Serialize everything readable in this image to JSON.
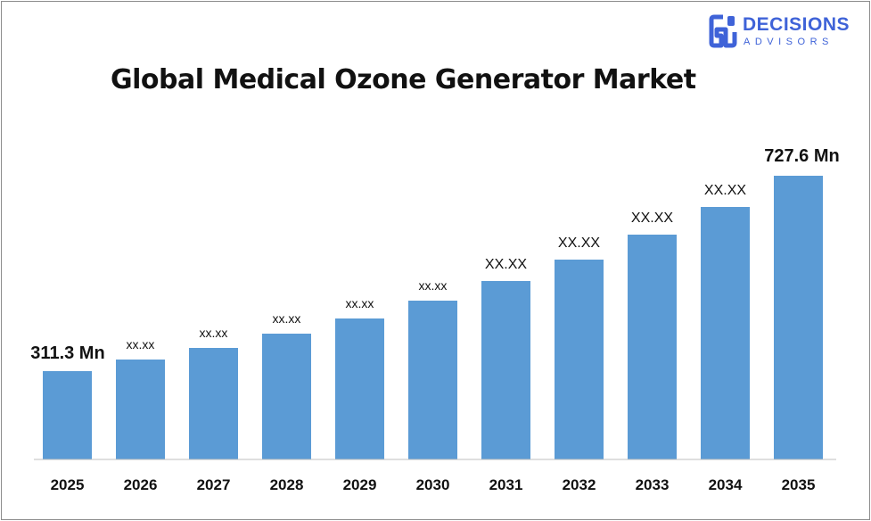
{
  "logo": {
    "line1": "DECISIONS",
    "line2": "ADVISORS",
    "icon": "decisions-advisors-logo-mark",
    "color": "#3f63d8"
  },
  "chart_data": {
    "type": "bar",
    "title": "Global Medical Ozone Generator Market",
    "categories": [
      "2025",
      "2026",
      "2027",
      "2028",
      "2029",
      "2030",
      "2031",
      "2032",
      "2033",
      "2034",
      "2035"
    ],
    "values": [
      311.3,
      350,
      392,
      440,
      494,
      555,
      623,
      700,
      786,
      883,
      727.6
    ],
    "data_labels": [
      "311.3 Mn",
      "xx.xx",
      "xx.xx",
      "xx.xx",
      "xx.xx",
      "xx.xx",
      "XX.XX",
      "XX.XX",
      "XX.XX",
      "XX.XX",
      "727.6 Mn"
    ],
    "bar_color": "#5b9bd5",
    "grid": false,
    "legend": "none"
  }
}
